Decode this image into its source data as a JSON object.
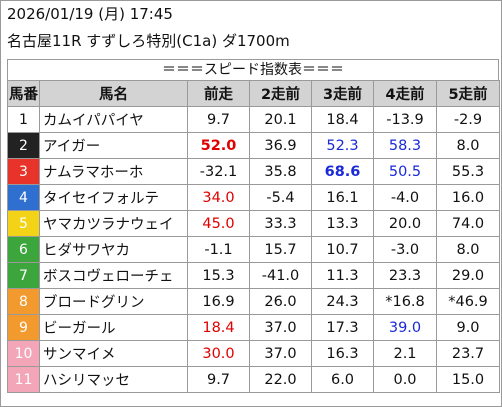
{
  "header": {
    "date_line": "2026/01/19 (月) 17:45",
    "race_line": "名古屋11R すずしろ特別(C1a) ダ1700m",
    "banner": "＝＝＝スピード指数表＝＝＝"
  },
  "columns": [
    "馬番",
    "馬名",
    "前走",
    "2走前",
    "3走前",
    "4走前",
    "5走前"
  ],
  "colors": {
    "header_bg": "#d3d3d3",
    "red": "#e00000",
    "blue": "#1a2ad8",
    "waku": [
      "#ffffff",
      "#222222",
      "#e8332a",
      "#2f6fcf",
      "#f2d318",
      "#3ca63c",
      "#f29a2e",
      "#f29a2e",
      "#f4a6b9",
      "#f4a6b9"
    ]
  },
  "rows": [
    {
      "no": "1",
      "name": "カムイパパイヤ",
      "waku_bg": "#ffffff",
      "waku_fg": "#111111",
      "v": [
        {
          "t": "9.7"
        },
        {
          "t": "20.1"
        },
        {
          "t": "18.4"
        },
        {
          "t": "-13.9"
        },
        {
          "t": "-2.9"
        }
      ]
    },
    {
      "no": "2",
      "name": "アイガー",
      "waku_bg": "#222222",
      "waku_fg": "#ffffff",
      "v": [
        {
          "t": "52.0",
          "c": "red",
          "b": true
        },
        {
          "t": "36.9"
        },
        {
          "t": "52.3",
          "c": "blue"
        },
        {
          "t": "58.3",
          "c": "blue"
        },
        {
          "t": "8.0"
        }
      ]
    },
    {
      "no": "3",
      "name": "ナムラマホーホ",
      "waku_bg": "#e8332a",
      "waku_fg": "#ffffff",
      "v": [
        {
          "t": "-32.1"
        },
        {
          "t": "35.8"
        },
        {
          "t": "68.6",
          "c": "blue",
          "b": true
        },
        {
          "t": "50.5",
          "c": "blue"
        },
        {
          "t": "55.3"
        }
      ]
    },
    {
      "no": "4",
      "name": "タイセイフォルテ",
      "waku_bg": "#2f6fcf",
      "waku_fg": "#ffffff",
      "v": [
        {
          "t": "34.0",
          "c": "red"
        },
        {
          "t": "-5.4"
        },
        {
          "t": "16.1"
        },
        {
          "t": "-4.0"
        },
        {
          "t": "16.0"
        }
      ]
    },
    {
      "no": "5",
      "name": "ヤマカツラナウェイ",
      "waku_bg": "#f2d318",
      "waku_fg": "#ffffff",
      "v": [
        {
          "t": "45.0",
          "c": "red"
        },
        {
          "t": "33.3"
        },
        {
          "t": "13.3"
        },
        {
          "t": "20.0"
        },
        {
          "t": "74.0"
        }
      ]
    },
    {
      "no": "6",
      "name": "ヒダサワヤカ",
      "waku_bg": "#3ca63c",
      "waku_fg": "#ffffff",
      "v": [
        {
          "t": "-1.1"
        },
        {
          "t": "15.7"
        },
        {
          "t": "10.7"
        },
        {
          "t": "-3.0"
        },
        {
          "t": "8.0"
        }
      ]
    },
    {
      "no": "7",
      "name": "ボスコヴェローチェ",
      "waku_bg": "#3ca63c",
      "waku_fg": "#ffffff",
      "v": [
        {
          "t": "15.3"
        },
        {
          "t": "-41.0"
        },
        {
          "t": "11.3"
        },
        {
          "t": "23.3"
        },
        {
          "t": "29.0"
        }
      ]
    },
    {
      "no": "8",
      "name": "ブロードグリン",
      "waku_bg": "#f29a2e",
      "waku_fg": "#ffffff",
      "v": [
        {
          "t": "16.9"
        },
        {
          "t": "26.0"
        },
        {
          "t": "24.3"
        },
        {
          "t": "*16.8"
        },
        {
          "t": "*46.9"
        }
      ]
    },
    {
      "no": "9",
      "name": "ビーガール",
      "waku_bg": "#f29a2e",
      "waku_fg": "#ffffff",
      "v": [
        {
          "t": "18.4",
          "c": "red"
        },
        {
          "t": "37.0"
        },
        {
          "t": "17.3"
        },
        {
          "t": "39.0",
          "c": "blue"
        },
        {
          "t": "9.0"
        }
      ]
    },
    {
      "no": "10",
      "name": "サンマイメ",
      "waku_bg": "#f4a6b9",
      "waku_fg": "#ffffff",
      "v": [
        {
          "t": "30.0",
          "c": "red"
        },
        {
          "t": "37.0"
        },
        {
          "t": "16.3"
        },
        {
          "t": "2.1"
        },
        {
          "t": "23.7"
        }
      ]
    },
    {
      "no": "11",
      "name": "ハシリマッセ",
      "waku_bg": "#f4a6b9",
      "waku_fg": "#ffffff",
      "v": [
        {
          "t": "9.7"
        },
        {
          "t": "22.0"
        },
        {
          "t": "6.0"
        },
        {
          "t": "0.0"
        },
        {
          "t": "15.0"
        }
      ]
    }
  ]
}
